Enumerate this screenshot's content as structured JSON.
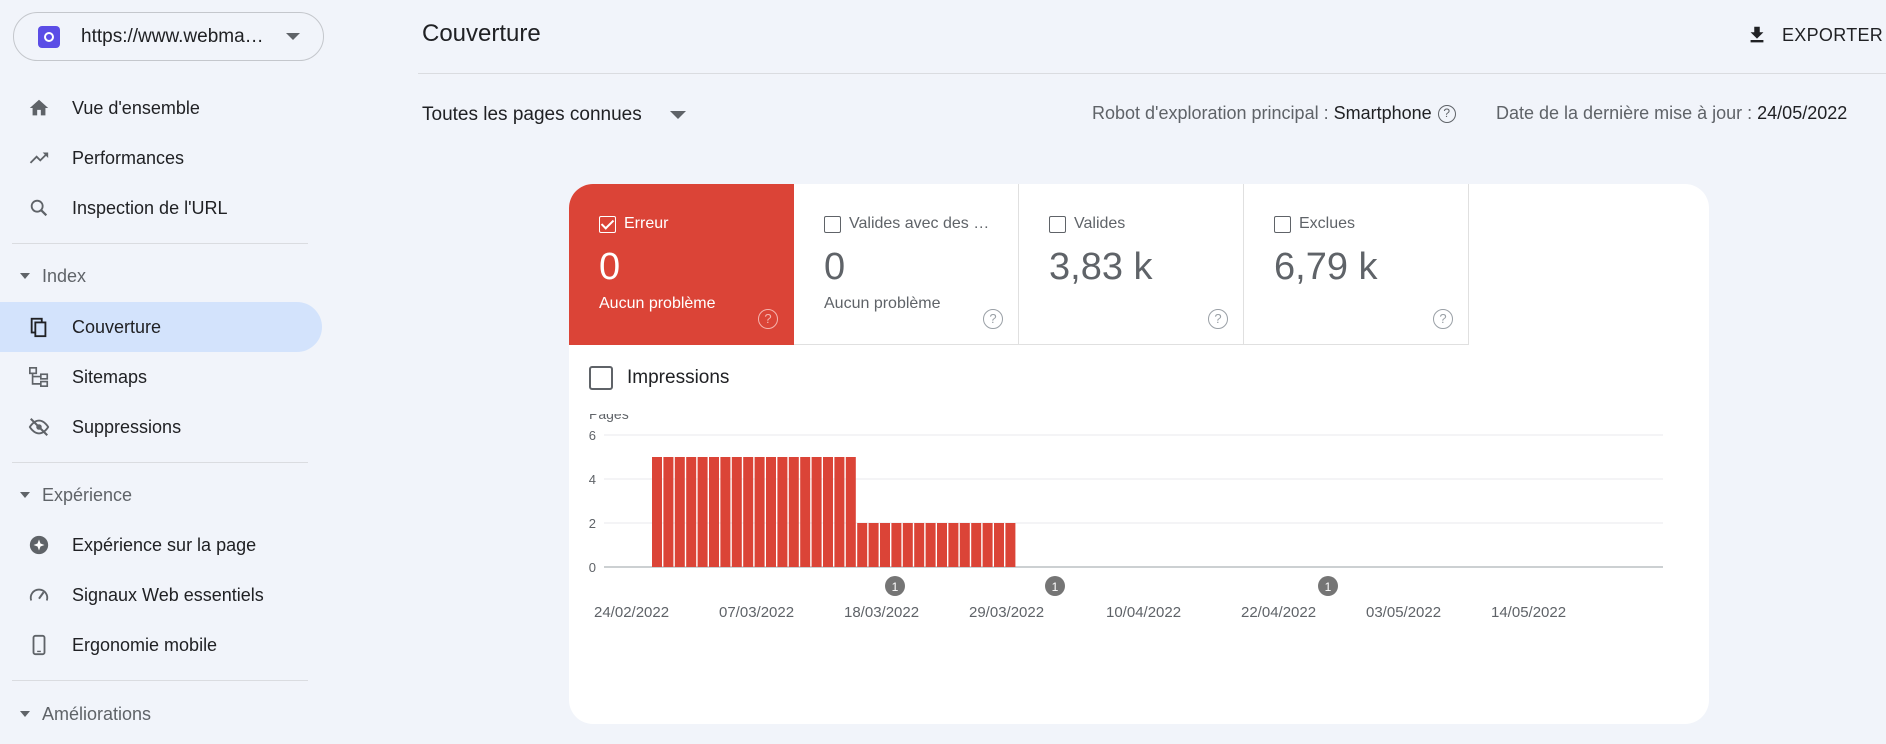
{
  "sidebar": {
    "property_url": "https://www.webma…",
    "nav": [
      {
        "label": "Vue d'ensemble"
      },
      {
        "label": "Performances"
      },
      {
        "label": "Inspection de l'URL"
      }
    ],
    "index_section": "Index",
    "index_items": [
      {
        "label": "Couverture"
      },
      {
        "label": "Sitemaps"
      },
      {
        "label": "Suppressions"
      }
    ],
    "experience_section": "Expérience",
    "experience_items": [
      {
        "label": "Expérience sur la page"
      },
      {
        "label": "Signaux Web essentiels"
      },
      {
        "label": "Ergonomie mobile"
      }
    ],
    "ameliorations_section": "Améliorations"
  },
  "header": {
    "title": "Couverture",
    "export_label": "EXPORTER",
    "filter_label": "Toutes les pages connues",
    "crawler_label": "Robot d'exploration principal :",
    "crawler_value": "Smartphone",
    "update_label": "Date de la dernière mise à jour :",
    "update_value": "24/05/2022"
  },
  "tiles": [
    {
      "label": "Erreur",
      "value": "0",
      "sub": "Aucun problème"
    },
    {
      "label": "Valides avec des …",
      "value": "0",
      "sub": "Aucun problème"
    },
    {
      "label": "Valides",
      "value": "3,83 k",
      "sub": ""
    },
    {
      "label": "Exclues",
      "value": "6,79 k",
      "sub": ""
    }
  ],
  "impressions_label": "Impressions",
  "chart_data": {
    "type": "bar",
    "ylabel": "Pages",
    "ylim": [
      0,
      6
    ],
    "yticks": [
      0,
      2,
      4,
      6
    ],
    "color": "#db4437",
    "x_tick_labels": [
      "24/02/2022",
      "07/03/2022",
      "18/03/2022",
      "29/03/2022",
      "10/04/2022",
      "22/04/2022",
      "03/05/2022",
      "14/05/2022"
    ],
    "values": [
      5,
      5,
      5,
      5,
      5,
      5,
      5,
      5,
      5,
      5,
      5,
      5,
      5,
      5,
      5,
      5,
      5,
      5,
      2,
      2,
      2,
      2,
      2,
      2,
      2,
      2,
      2,
      2,
      2,
      2,
      2,
      2
    ],
    "annotations": [
      "1",
      "1",
      "1"
    ]
  }
}
